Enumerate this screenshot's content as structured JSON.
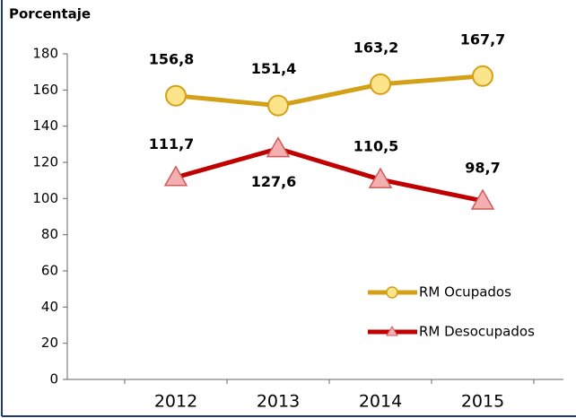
{
  "chart_data": {
    "type": "line",
    "y_label": "Porcentaje",
    "categories": [
      "2012",
      "2013",
      "2014",
      "2015"
    ],
    "series": [
      {
        "name": "RM Ocupados",
        "color": "#d4a017",
        "marker": "circle",
        "values": [
          156.8,
          151.4,
          163.2,
          167.7
        ],
        "value_labels": [
          "156,8",
          "151,4",
          "163,2",
          "167,7"
        ]
      },
      {
        "name": "RM Desocupados",
        "color": "#c00000",
        "marker": "triangle",
        "values": [
          111.7,
          127.6,
          110.5,
          98.7
        ],
        "value_labels": [
          "111,7",
          "127,6",
          "110,5",
          "98,7"
        ]
      }
    ],
    "ylim": [
      0,
      180
    ],
    "yticks": [
      0,
      20,
      40,
      60,
      80,
      100,
      120,
      140,
      160,
      180
    ],
    "grid": false,
    "legend": "lower right"
  }
}
